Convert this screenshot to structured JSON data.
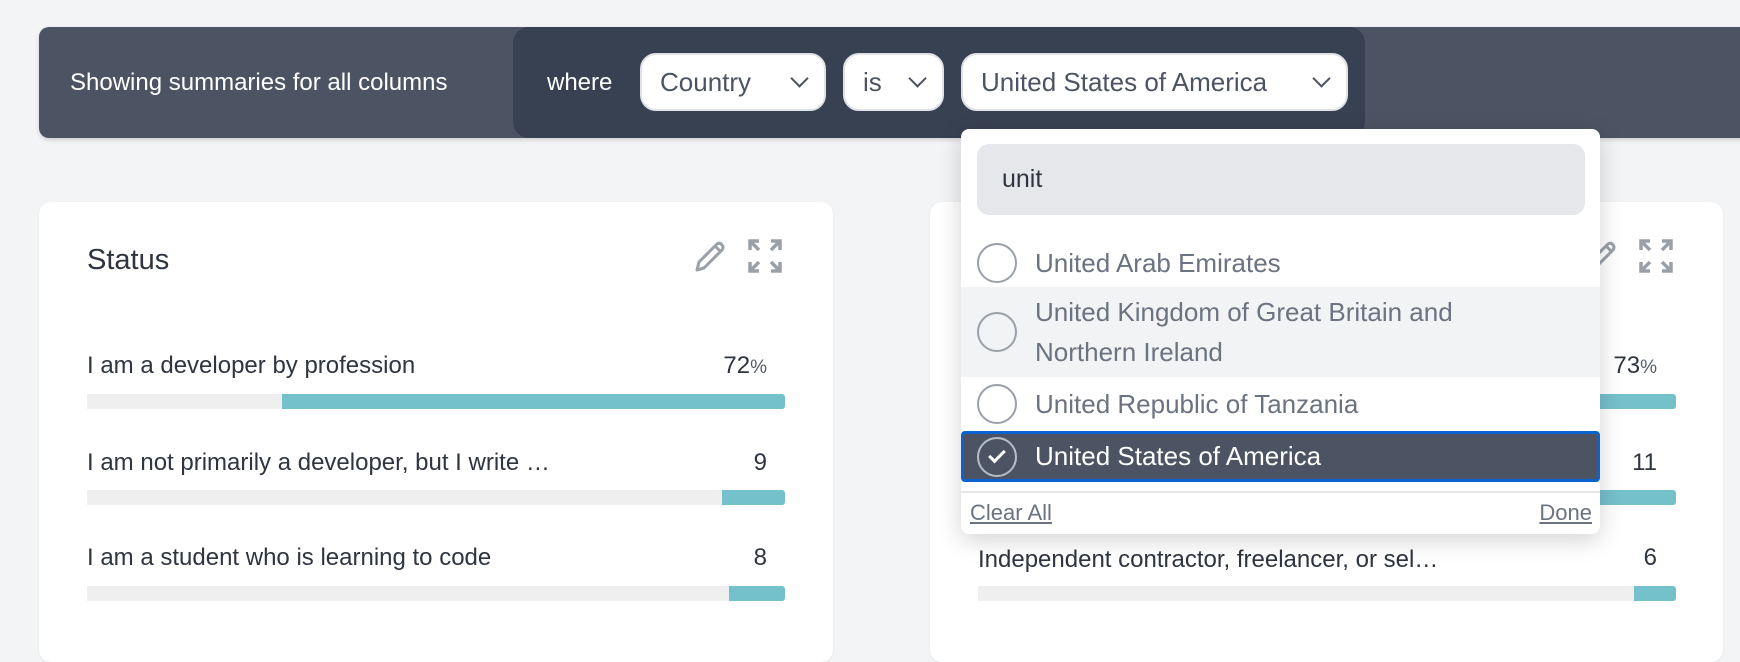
{
  "filter_bar": {
    "showing_text": "Showing summaries for all columns",
    "where_label": "where",
    "column_select": "Country",
    "operator_select": "is",
    "value_select": "United States of America"
  },
  "dropdown": {
    "search_value": "unit",
    "options": [
      {
        "label": "United Arab Emirates",
        "checked": false
      },
      {
        "label": "United Kingdom of Great Britain and Northern Ireland",
        "checked": false
      },
      {
        "label": "United Republic of Tanzania",
        "checked": false
      },
      {
        "label": "United States of America",
        "checked": true
      }
    ],
    "clear_all": "Clear All",
    "done": "Done"
  },
  "cards": [
    {
      "title": "Status",
      "rows": [
        {
          "label": "I am a developer by profession",
          "value": "72",
          "unit": "%",
          "fraction": 0.72
        },
        {
          "label": "I am not primarily a developer, but I write …",
          "value": "9",
          "fraction": 0.09
        },
        {
          "label": "I am a student who is learning to code",
          "value": "8",
          "fraction": 0.08
        }
      ]
    },
    {
      "title": "",
      "rows": [
        {
          "label": "",
          "value": "73",
          "unit": "%",
          "fraction": 0.73
        },
        {
          "label": "",
          "value": "11",
          "fraction": 0.11
        },
        {
          "label": "Independent contractor, freelancer, or sel…",
          "value": "6",
          "fraction": 0.06
        }
      ]
    }
  ],
  "colors": {
    "bar_fill": "#75c1cb",
    "header_bg": "#4c5463",
    "selected_border": "#0a63d0"
  }
}
